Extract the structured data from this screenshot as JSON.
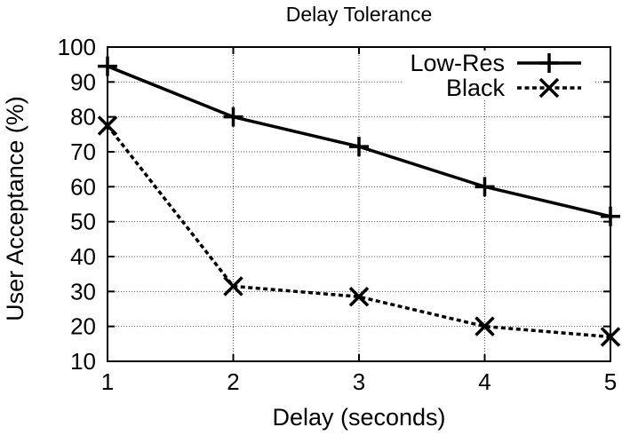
{
  "chart_data": {
    "type": "line",
    "title": "Delay Tolerance",
    "xlabel": "Delay (seconds)",
    "ylabel": "User Acceptance (%)",
    "xlim": [
      1,
      5
    ],
    "ylim": [
      10,
      100
    ],
    "xticks": [
      1,
      2,
      3,
      4,
      5
    ],
    "yticks": [
      10,
      20,
      30,
      40,
      50,
      60,
      70,
      80,
      90,
      100
    ],
    "grid": true,
    "legend_position": "top-right-inside",
    "x": [
      1,
      2,
      3,
      4,
      5
    ],
    "series": [
      {
        "name": "Low-Res",
        "values": [
          94.5,
          80,
          71.5,
          60,
          51.5
        ],
        "line": "solid",
        "marker": "plus"
      },
      {
        "name": "Black",
        "values": [
          77.5,
          31.5,
          28.5,
          20,
          17
        ],
        "line": "dashed",
        "marker": "cross"
      }
    ],
    "colors": {
      "foreground": "#000000",
      "background": "#ffffff",
      "grid": "#555555"
    }
  }
}
